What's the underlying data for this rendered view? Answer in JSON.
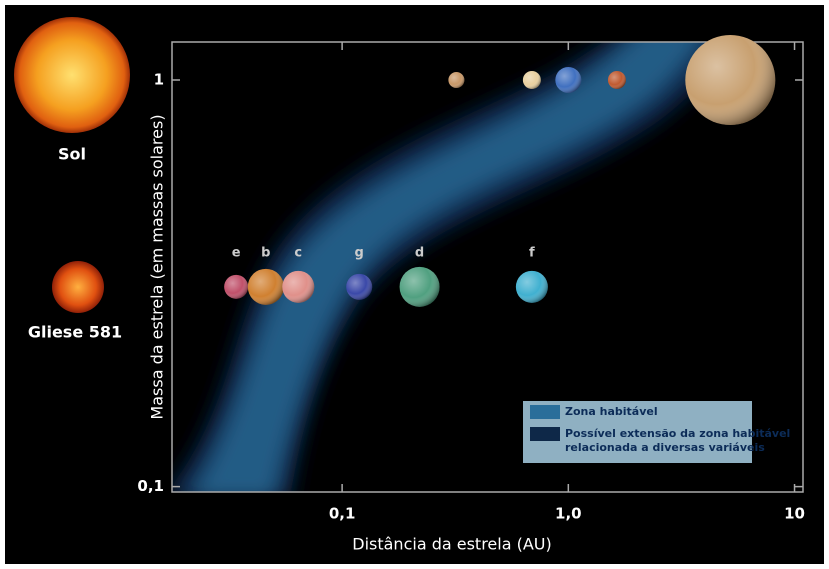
{
  "stars": [
    {
      "label": "Sol"
    },
    {
      "label": "Gliese 581"
    }
  ],
  "chart_data": {
    "type": "scatter",
    "x_label": "Distância da estrela (AU)",
    "y_label": "Massa da estrela (em massas solares)",
    "log_x": true,
    "log_y": true,
    "xlim": [
      0.0177,
      10.9
    ],
    "ylim": [
      0.097,
      1.24
    ],
    "xticks": [
      {
        "value": 0.1,
        "label": "0,1"
      },
      {
        "value": 1,
        "label": "1,0"
      },
      10
    ],
    "yticks": [
      {
        "value": 0.1,
        "label": "0,1"
      },
      1
    ],
    "series": [
      {
        "labels": [
          "e",
          "b",
          "c",
          "g",
          "d",
          "f"
        ],
        "x": [
          0.034,
          0.046,
          0.064,
          0.119,
          0.22,
          0.69
        ],
        "values": [
          0.31,
          0.31,
          0.31,
          0.31,
          0.31,
          0.31
        ],
        "colors": [
          "#c0506a",
          "#d08030",
          "#e0908a",
          "#3a48a8",
          "#50a080",
          "#40b0d0"
        ]
      },
      {
        "x": [
          0.32,
          0.69,
          1.0,
          1.64,
          5.2
        ],
        "values": [
          1,
          1,
          1,
          1,
          1
        ],
        "colors": [
          "#c89868",
          "#e8d0a0",
          "#4070c0",
          "#c05a30",
          "#c8a070"
        ]
      }
    ],
    "legend": [
      {
        "label": [
          "Zona habitável"
        ],
        "color": "#2a6e9a"
      },
      {
        "label": [
          "Possível extensão da zona habitável",
          "relacionada a diversas variáveis"
        ],
        "color": "#0e2848"
      }
    ]
  }
}
